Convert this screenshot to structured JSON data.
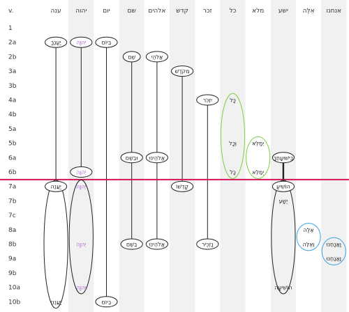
{
  "header": {
    "verse_label": "v."
  },
  "columns": [
    {
      "key": "c1",
      "heb": "ענה",
      "shaded": false
    },
    {
      "key": "c2",
      "heb": "יהוה",
      "shaded": true
    },
    {
      "key": "c3",
      "heb": "יום",
      "shaded": false
    },
    {
      "key": "c4",
      "heb": "שם",
      "shaded": true
    },
    {
      "key": "c5",
      "heb": "אלהים",
      "shaded": false
    },
    {
      "key": "c6",
      "heb": "קדש",
      "shaded": true
    },
    {
      "key": "c7",
      "heb": "זכר",
      "shaded": false
    },
    {
      "key": "c8",
      "heb": "כל",
      "shaded": true
    },
    {
      "key": "c9",
      "heb": "מלא",
      "shaded": false
    },
    {
      "key": "c10",
      "heb": "ישע",
      "shaded": true
    },
    {
      "key": "c11",
      "heb": "אֵלֶּה",
      "shaded": false
    },
    {
      "key": "c12",
      "heb": "אנחנו",
      "shaded": true
    }
  ],
  "rows": [
    "1",
    "2a",
    "2b",
    "3a",
    "3b",
    "4a",
    "4b",
    "5a",
    "5b",
    "6a",
    "6b",
    "7a",
    "7b",
    "7c",
    "8a",
    "8b",
    "9a",
    "9b",
    "10a",
    "10b"
  ],
  "divider_after_row": "6b",
  "colors": {
    "black": "#222222",
    "purple": "#b05fe0",
    "green": "#7ccf45",
    "blue": "#3aa0e0",
    "divider": "#d4145a",
    "shade": "#f1f1f1"
  },
  "words": [
    {
      "text": "יַעַנְךָ",
      "col": "c1",
      "row": "2a",
      "color": "black"
    },
    {
      "text": "יַעֲנֵה",
      "col": "c1",
      "row": "7a",
      "color": "black"
    },
    {
      "text": "יַעֲנֵנוּ",
      "col": "c1",
      "row": "10b",
      "color": "black"
    },
    {
      "text": "יְהוָה",
      "col": "c2",
      "row": "2a",
      "color": "purple"
    },
    {
      "text": "יְהוָה",
      "col": "c2",
      "row": "6b",
      "color": "purple"
    },
    {
      "text": "יְהוָה",
      "col": "c2",
      "row": "7a",
      "color": "purple"
    },
    {
      "text": "יְהוָה",
      "col": "c2",
      "row": "8b",
      "color": "purple"
    },
    {
      "text": "יְהוָה",
      "col": "c2",
      "row": "10a",
      "color": "purple"
    },
    {
      "text": "בְּיוֹם",
      "col": "c3",
      "row": "2a",
      "color": "black"
    },
    {
      "text": "בְיוֹם",
      "col": "c3",
      "row": "10b",
      "color": "black"
    },
    {
      "text": "שֵׁם",
      "col": "c4",
      "row": "2b",
      "color": "black"
    },
    {
      "text": "וּבְשֵׁם",
      "col": "c4",
      "row": "6a",
      "color": "black"
    },
    {
      "text": "בְּשֵׁם",
      "col": "c4",
      "row": "8b",
      "color": "black"
    },
    {
      "text": "אֱלֹהֵי",
      "col": "c5",
      "row": "2b",
      "color": "black"
    },
    {
      "text": "אֱלֹהֵינוּ",
      "col": "c5",
      "row": "6a",
      "color": "black"
    },
    {
      "text": "אֱלֹהֵינוּ",
      "col": "c5",
      "row": "8b",
      "color": "black"
    },
    {
      "text": "מִקֹּדֶשׁ",
      "col": "c6",
      "row": "3a",
      "color": "black"
    },
    {
      "text": "קָדְשׁוֹ",
      "col": "c6",
      "row": "7a",
      "color": "black"
    },
    {
      "text": "יִזְכֹּר",
      "col": "c7",
      "row": "4a",
      "color": "black"
    },
    {
      "text": "נַזְכִּיר",
      "col": "c7",
      "row": "8b",
      "color": "black"
    },
    {
      "text": "כָּל",
      "col": "c8",
      "row": "4a",
      "color": "black"
    },
    {
      "text": "וְכָל",
      "col": "c8",
      "row": "5b",
      "color": "black"
    },
    {
      "text": "כָּל",
      "col": "c8",
      "row": "6b",
      "color": "black"
    },
    {
      "text": "יְמַלֵּא",
      "col": "c9",
      "row": "5b",
      "color": "black"
    },
    {
      "text": "יְמַלֵּא",
      "col": "c9",
      "row": "6b",
      "color": "black"
    },
    {
      "text": "בִּישׁוּעָתֶךָ",
      "col": "c10",
      "row": "6a",
      "color": "black"
    },
    {
      "text": "הוֹשִׁיעַ",
      "col": "c10",
      "row": "7a",
      "color": "black"
    },
    {
      "text": "יֵשַׁע",
      "col": "c10",
      "row": "7b",
      "color": "black"
    },
    {
      "text": "הוֹשִׁיעָה",
      "col": "c10",
      "row": "10a",
      "color": "black"
    },
    {
      "text": "אֵלֶּה",
      "col": "c11",
      "row": "8a",
      "color": "black"
    },
    {
      "text": "וְאֵלֶּה",
      "col": "c11",
      "row": "8b",
      "color": "black"
    },
    {
      "text": "וַאֲנַחְנוּ",
      "col": "c12",
      "row": "8b",
      "color": "black"
    },
    {
      "text": "וַאֲנַחְנוּ",
      "col": "c12",
      "row": "9a",
      "color": "black"
    }
  ],
  "connectors": [
    {
      "col": "c1",
      "from": "2a",
      "to": "7a",
      "color": "black"
    },
    {
      "col": "c2",
      "from": "2a",
      "to": "6b",
      "color": "black"
    },
    {
      "col": "c3",
      "from": "2a",
      "to": "10b",
      "color": "black"
    },
    {
      "col": "c4",
      "from": "2b",
      "to": "6a",
      "color": "black"
    },
    {
      "col": "c4",
      "from": "6a",
      "to": "8b",
      "color": "black"
    },
    {
      "col": "c5",
      "from": "2b",
      "to": "6a",
      "color": "black"
    },
    {
      "col": "c5",
      "from": "6a",
      "to": "8b",
      "color": "black"
    },
    {
      "col": "c6",
      "from": "3a",
      "to": "7a",
      "color": "black"
    },
    {
      "col": "c7",
      "from": "4a",
      "to": "8b",
      "color": "black"
    },
    {
      "col": "c10",
      "from": "6a",
      "to": "7a",
      "color": "black",
      "bold": true
    }
  ],
  "groups": [
    {
      "col": "c1",
      "from": "7a",
      "to": "10b",
      "color": "black"
    },
    {
      "col": "c2",
      "from": "7a",
      "to": "10a",
      "color": "black"
    },
    {
      "col": "c8",
      "from": "4a",
      "to": "6b",
      "color": "green"
    },
    {
      "col": "c9",
      "from": "5b",
      "to": "6b",
      "color": "green"
    },
    {
      "col": "c10",
      "from": "7a",
      "to": "10a",
      "color": "black"
    },
    {
      "col": "c11",
      "from": "8a",
      "to": "8b",
      "color": "blue"
    },
    {
      "col": "c12",
      "from": "8b",
      "to": "9a",
      "color": "blue"
    }
  ]
}
